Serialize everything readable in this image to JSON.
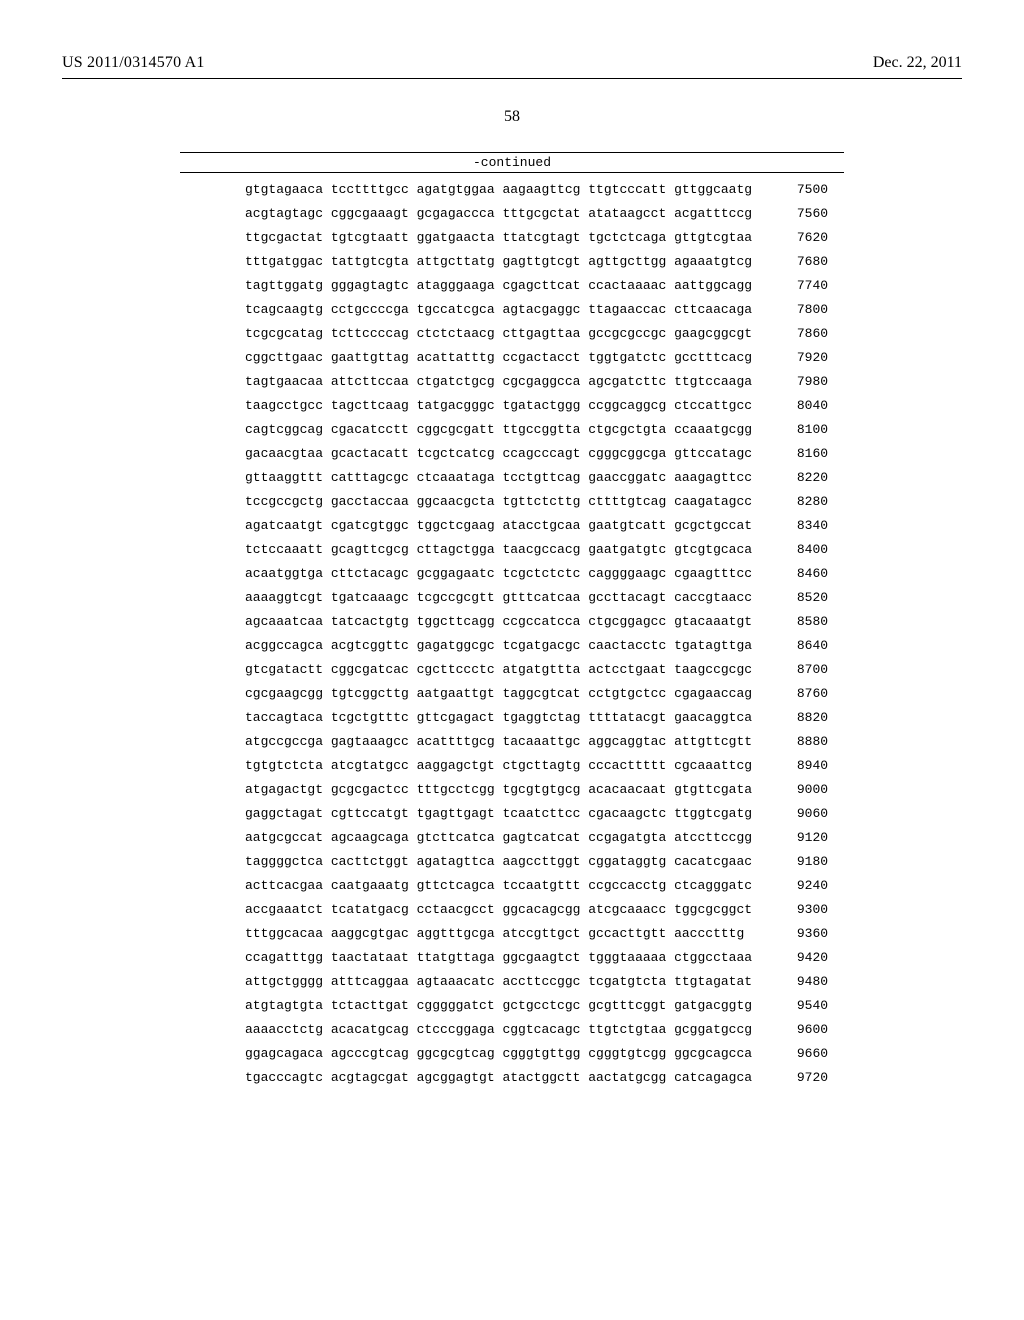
{
  "header": {
    "left": "US 2011/0314570 A1",
    "right": "Dec. 22, 2011"
  },
  "page_number": "58",
  "continued_label": "-continued",
  "sequence": {
    "group_gap": " ",
    "rows": [
      {
        "groups": [
          "gtgtagaaca",
          "tccttttgcc",
          "agatgtggaa",
          "aagaagttcg",
          "ttgtcccatt",
          "gttggcaatg"
        ],
        "pos": 7500
      },
      {
        "groups": [
          "acgtagtagc",
          "cggcgaaagt",
          "gcgagaccca",
          "tttgcgctat",
          "atataagcct",
          "acgatttccg"
        ],
        "pos": 7560
      },
      {
        "groups": [
          "ttgcgactat",
          "tgtcgtaatt",
          "ggatgaacta",
          "ttatcgtagt",
          "tgctctcaga",
          "gttgtcgtaa"
        ],
        "pos": 7620
      },
      {
        "groups": [
          "tttgatggac",
          "tattgtcgta",
          "attgcttatg",
          "gagttgtcgt",
          "agttgcttgg",
          "agaaatgtcg"
        ],
        "pos": 7680
      },
      {
        "groups": [
          "tagttggatg",
          "gggagtagtc",
          "atagggaaga",
          "cgagcttcat",
          "ccactaaaac",
          "aattggcagg"
        ],
        "pos": 7740
      },
      {
        "groups": [
          "tcagcaagtg",
          "cctgccccga",
          "tgccatcgca",
          "agtacgaggc",
          "ttagaaccac",
          "cttcaacaga"
        ],
        "pos": 7800
      },
      {
        "groups": [
          "tcgcgcatag",
          "tcttccccag",
          "ctctctaacg",
          "cttgagttaa",
          "gccgcgccgc",
          "gaagcggcgt"
        ],
        "pos": 7860
      },
      {
        "groups": [
          "cggcttgaac",
          "gaattgttag",
          "acattatttg",
          "ccgactacct",
          "tggtgatctc",
          "gcctttcacg"
        ],
        "pos": 7920
      },
      {
        "groups": [
          "tagtgaacaa",
          "attcttccaa",
          "ctgatctgcg",
          "cgcgaggcca",
          "agcgatcttc",
          "ttgtccaaga"
        ],
        "pos": 7980
      },
      {
        "groups": [
          "taagcctgcc",
          "tagcttcaag",
          "tatgacgggc",
          "tgatactggg",
          "ccggcaggcg",
          "ctccattgcc"
        ],
        "pos": 8040
      },
      {
        "groups": [
          "cagtcggcag",
          "cgacatcctt",
          "cggcgcgatt",
          "ttgccggtta",
          "ctgcgctgta",
          "ccaaatgcgg"
        ],
        "pos": 8100
      },
      {
        "groups": [
          "gacaacgtaa",
          "gcactacatt",
          "tcgctcatcg",
          "ccagcccagt",
          "cgggcggcga",
          "gttccatagc"
        ],
        "pos": 8160
      },
      {
        "groups": [
          "gttaaggttt",
          "catttagcgc",
          "ctcaaataga",
          "tcctgttcag",
          "gaaccggatc",
          "aaagagttcc"
        ],
        "pos": 8220
      },
      {
        "groups": [
          "tccgccgctg",
          "gacctaccaa",
          "ggcaacgcta",
          "tgttctcttg",
          "cttttgtcag",
          "caagatagcc"
        ],
        "pos": 8280
      },
      {
        "groups": [
          "agatcaatgt",
          "cgatcgtggc",
          "tggctcgaag",
          "atacctgcaa",
          "gaatgtcatt",
          "gcgctgccat"
        ],
        "pos": 8340
      },
      {
        "groups": [
          "tctccaaatt",
          "gcagttcgcg",
          "cttagctgga",
          "taacgccacg",
          "gaatgatgtc",
          "gtcgtgcaca"
        ],
        "pos": 8400
      },
      {
        "groups": [
          "acaatggtga",
          "cttctacagc",
          "gcggagaatc",
          "tcgctctctc",
          "caggggaagc",
          "cgaagtttcc"
        ],
        "pos": 8460
      },
      {
        "groups": [
          "aaaaggtcgt",
          "tgatcaaagc",
          "tcgccgcgtt",
          "gtttcatcaa",
          "gccttacagt",
          "caccgtaacc"
        ],
        "pos": 8520
      },
      {
        "groups": [
          "agcaaatcaa",
          "tatcactgtg",
          "tggcttcagg",
          "ccgccatcca",
          "ctgcggagcc",
          "gtacaaatgt"
        ],
        "pos": 8580
      },
      {
        "groups": [
          "acggccagca",
          "acgtcggttc",
          "gagatggcgc",
          "tcgatgacgc",
          "caactacctc",
          "tgatagttga"
        ],
        "pos": 8640
      },
      {
        "groups": [
          "gtcgatactt",
          "cggcgatcac",
          "cgcttccctc",
          "atgatgttta",
          "actcctgaat",
          "taagccgcgc"
        ],
        "pos": 8700
      },
      {
        "groups": [
          "cgcgaagcgg",
          "tgtcggcttg",
          "aatgaattgt",
          "taggcgtcat",
          "cctgtgctcc",
          "cgagaaccag"
        ],
        "pos": 8760
      },
      {
        "groups": [
          "taccagtaca",
          "tcgctgtttc",
          "gttcgagact",
          "tgaggtctag",
          "ttttatacgt",
          "gaacaggtca"
        ],
        "pos": 8820
      },
      {
        "groups": [
          "atgccgccga",
          "gagtaaagcc",
          "acattttgcg",
          "tacaaattgc",
          "aggcaggtac",
          "attgttcgtt"
        ],
        "pos": 8880
      },
      {
        "groups": [
          "tgtgtctcta",
          "atcgtatgcc",
          "aaggagctgt",
          "ctgcttagtg",
          "cccacttttt",
          "cgcaaattcg"
        ],
        "pos": 8940
      },
      {
        "groups": [
          "atgagactgt",
          "gcgcgactcc",
          "tttgcctcgg",
          "tgcgtgtgcg",
          "acacaacaat",
          "gtgttcgata"
        ],
        "pos": 9000
      },
      {
        "groups": [
          "gaggctagat",
          "cgttccatgt",
          "tgagttgagt",
          "tcaatcttcc",
          "cgacaagctc",
          "ttggtcgatg"
        ],
        "pos": 9060
      },
      {
        "groups": [
          "aatgcgccat",
          "agcaagcaga",
          "gtcttcatca",
          "gagtcatcat",
          "ccgagatgta",
          "atccttccgg"
        ],
        "pos": 9120
      },
      {
        "groups": [
          "taggggctca",
          "cacttctggt",
          "agatagttca",
          "aagccttggt",
          "cggataggtg",
          "cacatcgaac"
        ],
        "pos": 9180
      },
      {
        "groups": [
          "acttcacgaa",
          "caatgaaatg",
          "gttctcagca",
          "tccaatgttt",
          "ccgccacctg",
          "ctcagggatc"
        ],
        "pos": 9240
      },
      {
        "groups": [
          "accgaaatct",
          "tcatatgacg",
          "cctaacgcct",
          "ggcacagcgg",
          "atcgcaaacc",
          "tggcgcggct"
        ],
        "pos": 9300
      },
      {
        "groups": [
          "tttggcacaa",
          "aaggcgtgac",
          "aggtttgcga",
          "atccgttgct",
          "gccacttgtt",
          "aaccctttg "
        ],
        "pos": 9360
      },
      {
        "groups": [
          "ccagatttgg",
          "taactataat",
          "ttatgttaga",
          "ggcgaagtct",
          "tgggtaaaaa",
          "ctggcctaaa"
        ],
        "pos": 9420
      },
      {
        "groups": [
          "attgctgggg",
          "atttcaggaa",
          "agtaaacatc",
          "accttccggc",
          "tcgatgtcta",
          "ttgtagatat"
        ],
        "pos": 9480
      },
      {
        "groups": [
          "atgtagtgta",
          "tctacttgat",
          "cgggggatct",
          "gctgcctcgc",
          "gcgtttcggt",
          "gatgacggtg"
        ],
        "pos": 9540
      },
      {
        "groups": [
          "aaaacctctg",
          "acacatgcag",
          "ctcccggaga",
          "cggtcacagc",
          "ttgtctgtaa",
          "gcggatgccg"
        ],
        "pos": 9600
      },
      {
        "groups": [
          "ggagcagaca",
          "agcccgtcag",
          "ggcgcgtcag",
          "cgggtgttgg",
          "cgggtgtcgg",
          "ggcgcagcca"
        ],
        "pos": 9660
      },
      {
        "groups": [
          "tgacccagtc",
          "acgtagcgat",
          "agcggagtgt",
          "atactggctt",
          "aactatgcgg",
          "catcagagca"
        ],
        "pos": 9720
      }
    ]
  }
}
